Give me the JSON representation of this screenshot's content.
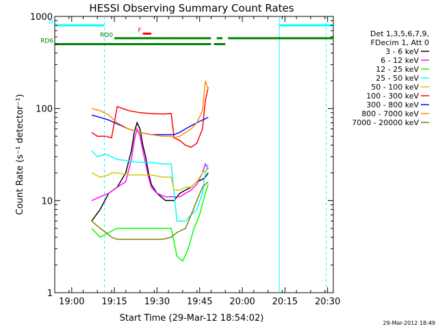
{
  "chart_data": {
    "type": "line",
    "title": "HESSI Observing Summary Count Rates",
    "xlabel": "Start Time (29-Mar-12 18:54:02)",
    "ylabel": "Count Rate (s⁻¹ detector⁻¹)",
    "y_scale": "log",
    "ylim": [
      1,
      1000
    ],
    "xlim": [
      "18:54:02",
      "20:32:00"
    ],
    "x_ticks": [
      "19:00",
      "19:15",
      "19:30",
      "19:45",
      "20:00",
      "20:15",
      "20:30"
    ],
    "y_ticks": [
      "1",
      "10",
      "100",
      "1000"
    ],
    "footer_timestamp": "29-Mar-2012 18:49",
    "legend": {
      "placement": "right",
      "header": [
        "Det 1,3,5,6,7,9,",
        "FDecim 1, Att 0"
      ]
    },
    "series": [
      {
        "name": "3 - 6 keV",
        "color": "#000000",
        "x": [
          "19:07",
          "19:10",
          "19:13",
          "19:16",
          "19:19",
          "19:21",
          "19:22",
          "19:23",
          "19:24",
          "19:25",
          "19:26",
          "19:27",
          "19:28",
          "19:30",
          "19:33",
          "19:36",
          "19:38",
          "19:40",
          "19:42",
          "19:44",
          "19:46",
          "19:47",
          "19:48"
        ],
        "y": [
          6,
          8,
          12,
          14,
          20,
          35,
          55,
          70,
          60,
          40,
          30,
          20,
          15,
          12,
          10,
          10,
          12,
          13,
          14,
          16,
          17,
          18,
          20
        ]
      },
      {
        "name": "6 - 12 keV",
        "color": "#ff00ff",
        "x": [
          "19:07",
          "19:10",
          "19:13",
          "19:16",
          "19:19",
          "19:21",
          "19:22",
          "19:23",
          "19:24",
          "19:25",
          "19:26",
          "19:27",
          "19:28",
          "19:30",
          "19:33",
          "19:36",
          "19:38",
          "19:40",
          "19:42",
          "19:44",
          "19:46",
          "19:47",
          "19:48"
        ],
        "y": [
          10,
          11,
          12,
          14,
          16,
          28,
          45,
          60,
          50,
          35,
          25,
          18,
          14,
          12,
          11,
          11,
          11,
          12,
          13,
          15,
          20,
          25,
          22
        ]
      },
      {
        "name": "12 - 25 keV",
        "color": "#00ff00",
        "x": [
          "19:07",
          "19:10",
          "19:13",
          "19:16",
          "19:20",
          "19:24",
          "19:28",
          "19:32",
          "19:35",
          "19:37",
          "19:39",
          "19:41",
          "19:43",
          "19:45",
          "19:47",
          "19:48"
        ],
        "y": [
          5,
          4,
          4.5,
          5,
          5,
          5,
          5,
          5,
          5,
          2.5,
          2.2,
          3,
          5,
          7,
          12,
          15
        ]
      },
      {
        "name": "25 - 50 keV",
        "color": "#00ffff",
        "x": [
          "19:07",
          "19:09",
          "19:12",
          "19:14",
          "19:16",
          "19:20",
          "19:24",
          "19:28",
          "19:32",
          "19:35",
          "19:37",
          "19:40",
          "19:42",
          "19:44",
          "19:46",
          "19:47",
          "19:48"
        ],
        "y": [
          35,
          30,
          32,
          30,
          28,
          27,
          26,
          26,
          25,
          25,
          6,
          6,
          7,
          8,
          12,
          20,
          25
        ]
      },
      {
        "name": "50 - 100 keV",
        "color": "#cccc00",
        "x": [
          "19:07",
          "19:10",
          "19:13",
          "19:14",
          "19:16",
          "19:20",
          "19:24",
          "19:28",
          "19:32",
          "19:35",
          "19:36",
          "19:38",
          "19:40",
          "19:42",
          "19:44",
          "19:46",
          "19:48"
        ],
        "y": [
          20,
          18,
          19,
          20,
          20,
          19,
          19,
          19,
          18,
          18,
          13,
          13,
          14,
          14,
          16,
          20,
          22
        ]
      },
      {
        "name": "100 - 300 keV",
        "color": "#ff0000",
        "x": [
          "19:07",
          "19:09",
          "19:12",
          "19:14",
          "19:16",
          "19:20",
          "19:24",
          "19:28",
          "19:32",
          "19:35",
          "19:36",
          "19:38",
          "19:40",
          "19:42",
          "19:44",
          "19:46",
          "19:47",
          "19:48"
        ],
        "y": [
          55,
          50,
          50,
          48,
          105,
          95,
          90,
          88,
          87,
          88,
          48,
          45,
          40,
          38,
          42,
          60,
          120,
          170
        ]
      },
      {
        "name": "300 - 800 keV",
        "color": "#0000ff",
        "x": [
          "19:07",
          "19:10",
          "19:13",
          "19:16",
          "19:20",
          "19:24",
          "19:28",
          "19:32",
          "19:35",
          "19:36",
          "19:38",
          "19:40",
          "19:42",
          "19:44",
          "19:46",
          "19:48"
        ],
        "y": [
          85,
          80,
          75,
          68,
          60,
          55,
          52,
          52,
          52,
          52,
          55,
          60,
          65,
          70,
          75,
          80
        ]
      },
      {
        "name": "800 - 7000 keV",
        "color": "#ff8c00",
        "x": [
          "19:07",
          "19:10",
          "19:13",
          "19:16",
          "19:20",
          "19:24",
          "19:28",
          "19:32",
          "19:35",
          "19:36",
          "19:38",
          "19:40",
          "19:42",
          "19:44",
          "19:46",
          "19:47",
          "19:48"
        ],
        "y": [
          100,
          95,
          85,
          70,
          60,
          55,
          52,
          50,
          50,
          48,
          50,
          55,
          60,
          70,
          95,
          200,
          160
        ]
      },
      {
        "name": "7000 - 20000 keV",
        "color": "#808000",
        "x": [
          "19:07",
          "19:10",
          "19:12",
          "19:14",
          "19:16",
          "19:20",
          "19:24",
          "19:28",
          "19:32",
          "19:35",
          "19:37",
          "19:40",
          "19:42",
          "19:44",
          "19:46",
          "19:48"
        ],
        "y": [
          6,
          5,
          4.5,
          4,
          3.8,
          3.8,
          3.8,
          3.8,
          3.8,
          4,
          4.5,
          5,
          7,
          10,
          14,
          16
        ]
      }
    ],
    "vertical_markers": [
      {
        "time": "19:11:30",
        "style": "dashed",
        "color": "#00ffff"
      },
      {
        "time": "20:13:00",
        "style": "solid",
        "color": "#00ffff"
      },
      {
        "time": "20:29:30",
        "style": "dashed",
        "color": "#00ffff"
      }
    ],
    "flag_bars": [
      {
        "label": "N",
        "color": "#00ffff",
        "level": 800,
        "segments": [
          [
            "18:54:02",
            "19:11:30"
          ],
          [
            "20:13:00",
            "20:32:00"
          ]
        ]
      },
      {
        "label": "F",
        "color": "#ff0000",
        "level": 650,
        "segments": [
          [
            "19:25:00",
            "19:28:00"
          ]
        ]
      },
      {
        "label": "RD0",
        "color": "#008000",
        "level": 580,
        "segments": [
          [
            "19:15:00",
            "19:36:00"
          ],
          [
            "19:36:00",
            "19:49:00"
          ],
          [
            "19:51:00",
            "19:53:00"
          ],
          [
            "19:55:00",
            "20:32:00"
          ]
        ]
      },
      {
        "label": "RD6",
        "color": "#008000",
        "level": 500,
        "segments": [
          [
            "18:54:02",
            "19:36:00"
          ],
          [
            "19:36:00",
            "19:49:00"
          ],
          [
            "19:50:00",
            "19:54:00"
          ]
        ]
      }
    ]
  }
}
